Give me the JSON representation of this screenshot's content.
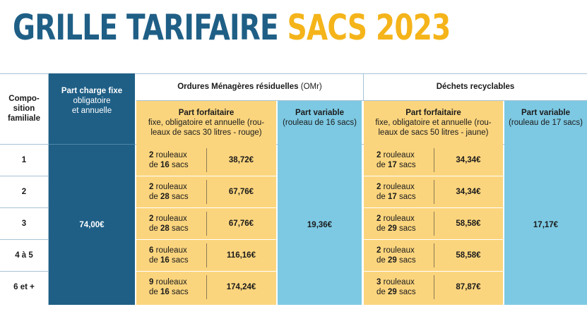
{
  "title": {
    "part1": "GRILLE TARIFAIRE",
    "part2": "SACS 2023"
  },
  "headers": {
    "composition": "Compo-\nsition\nfamiliale",
    "fixe_title": "Part charge fixe",
    "fixe_sub": "obligatoire\net annuelle",
    "omr_group_main": "Ordures Ménagères résiduelles",
    "omr_group_abbr": " (OMr)",
    "dr_group": "Déchets recyclables",
    "omr_forfait_title": "Part forfaitaire",
    "omr_forfait_sub": "fixe, obligatoire et annuelle (rou-\nleaux de sacs 30 litres - rouge)",
    "omr_variable_title": "Part variable",
    "omr_variable_sub": "(rouleau de 16 sacs)",
    "dr_forfait_title": "Part forfaitaire",
    "dr_forfait_sub": "fixe, obligatoire et annuelle (rou-\nleaux de sacs 50 litres - jaune)",
    "dr_variable_title": "Part variable",
    "dr_variable_sub": "(rouleau de 17 sacs)"
  },
  "fixe_value": "74,00€",
  "omr_variable_value": "19,36€",
  "dr_variable_value": "17,17€",
  "rows": [
    {
      "composition": "1",
      "omr": {
        "rolls": "2",
        "bags": "16",
        "price": "38,72€"
      },
      "dr": {
        "rolls": "2",
        "bags": "17",
        "price": "34,34€"
      }
    },
    {
      "composition": "2",
      "omr": {
        "rolls": "2",
        "bags": "28",
        "price": "67,76€"
      },
      "dr": {
        "rolls": "2",
        "bags": "17",
        "price": "34,34€"
      }
    },
    {
      "composition": "3",
      "omr": {
        "rolls": "2",
        "bags": "28",
        "price": "67,76€"
      },
      "dr": {
        "rolls": "2",
        "bags": "29",
        "price": "58,58€"
      }
    },
    {
      "composition": "4 à 5",
      "omr": {
        "rolls": "6",
        "bags": "16",
        "price": "116,16€"
      },
      "dr": {
        "rolls": "2",
        "bags": "29",
        "price": "58,58€"
      }
    },
    {
      "composition": "6 et +",
      "omr": {
        "rolls": "9",
        "bags": "16",
        "price": "174,24€"
      },
      "dr": {
        "rolls": "3",
        "bags": "29",
        "price": "87,87€"
      }
    }
  ],
  "units": {
    "rolls": "rouleaux",
    "bags_prefix": "de",
    "bags": "sacs"
  },
  "colors": {
    "dark_blue": "#1f5f86",
    "yellow_title": "#f4b41a",
    "yellow_cell": "#fbd57e",
    "light_blue": "#7dc9e3"
  }
}
